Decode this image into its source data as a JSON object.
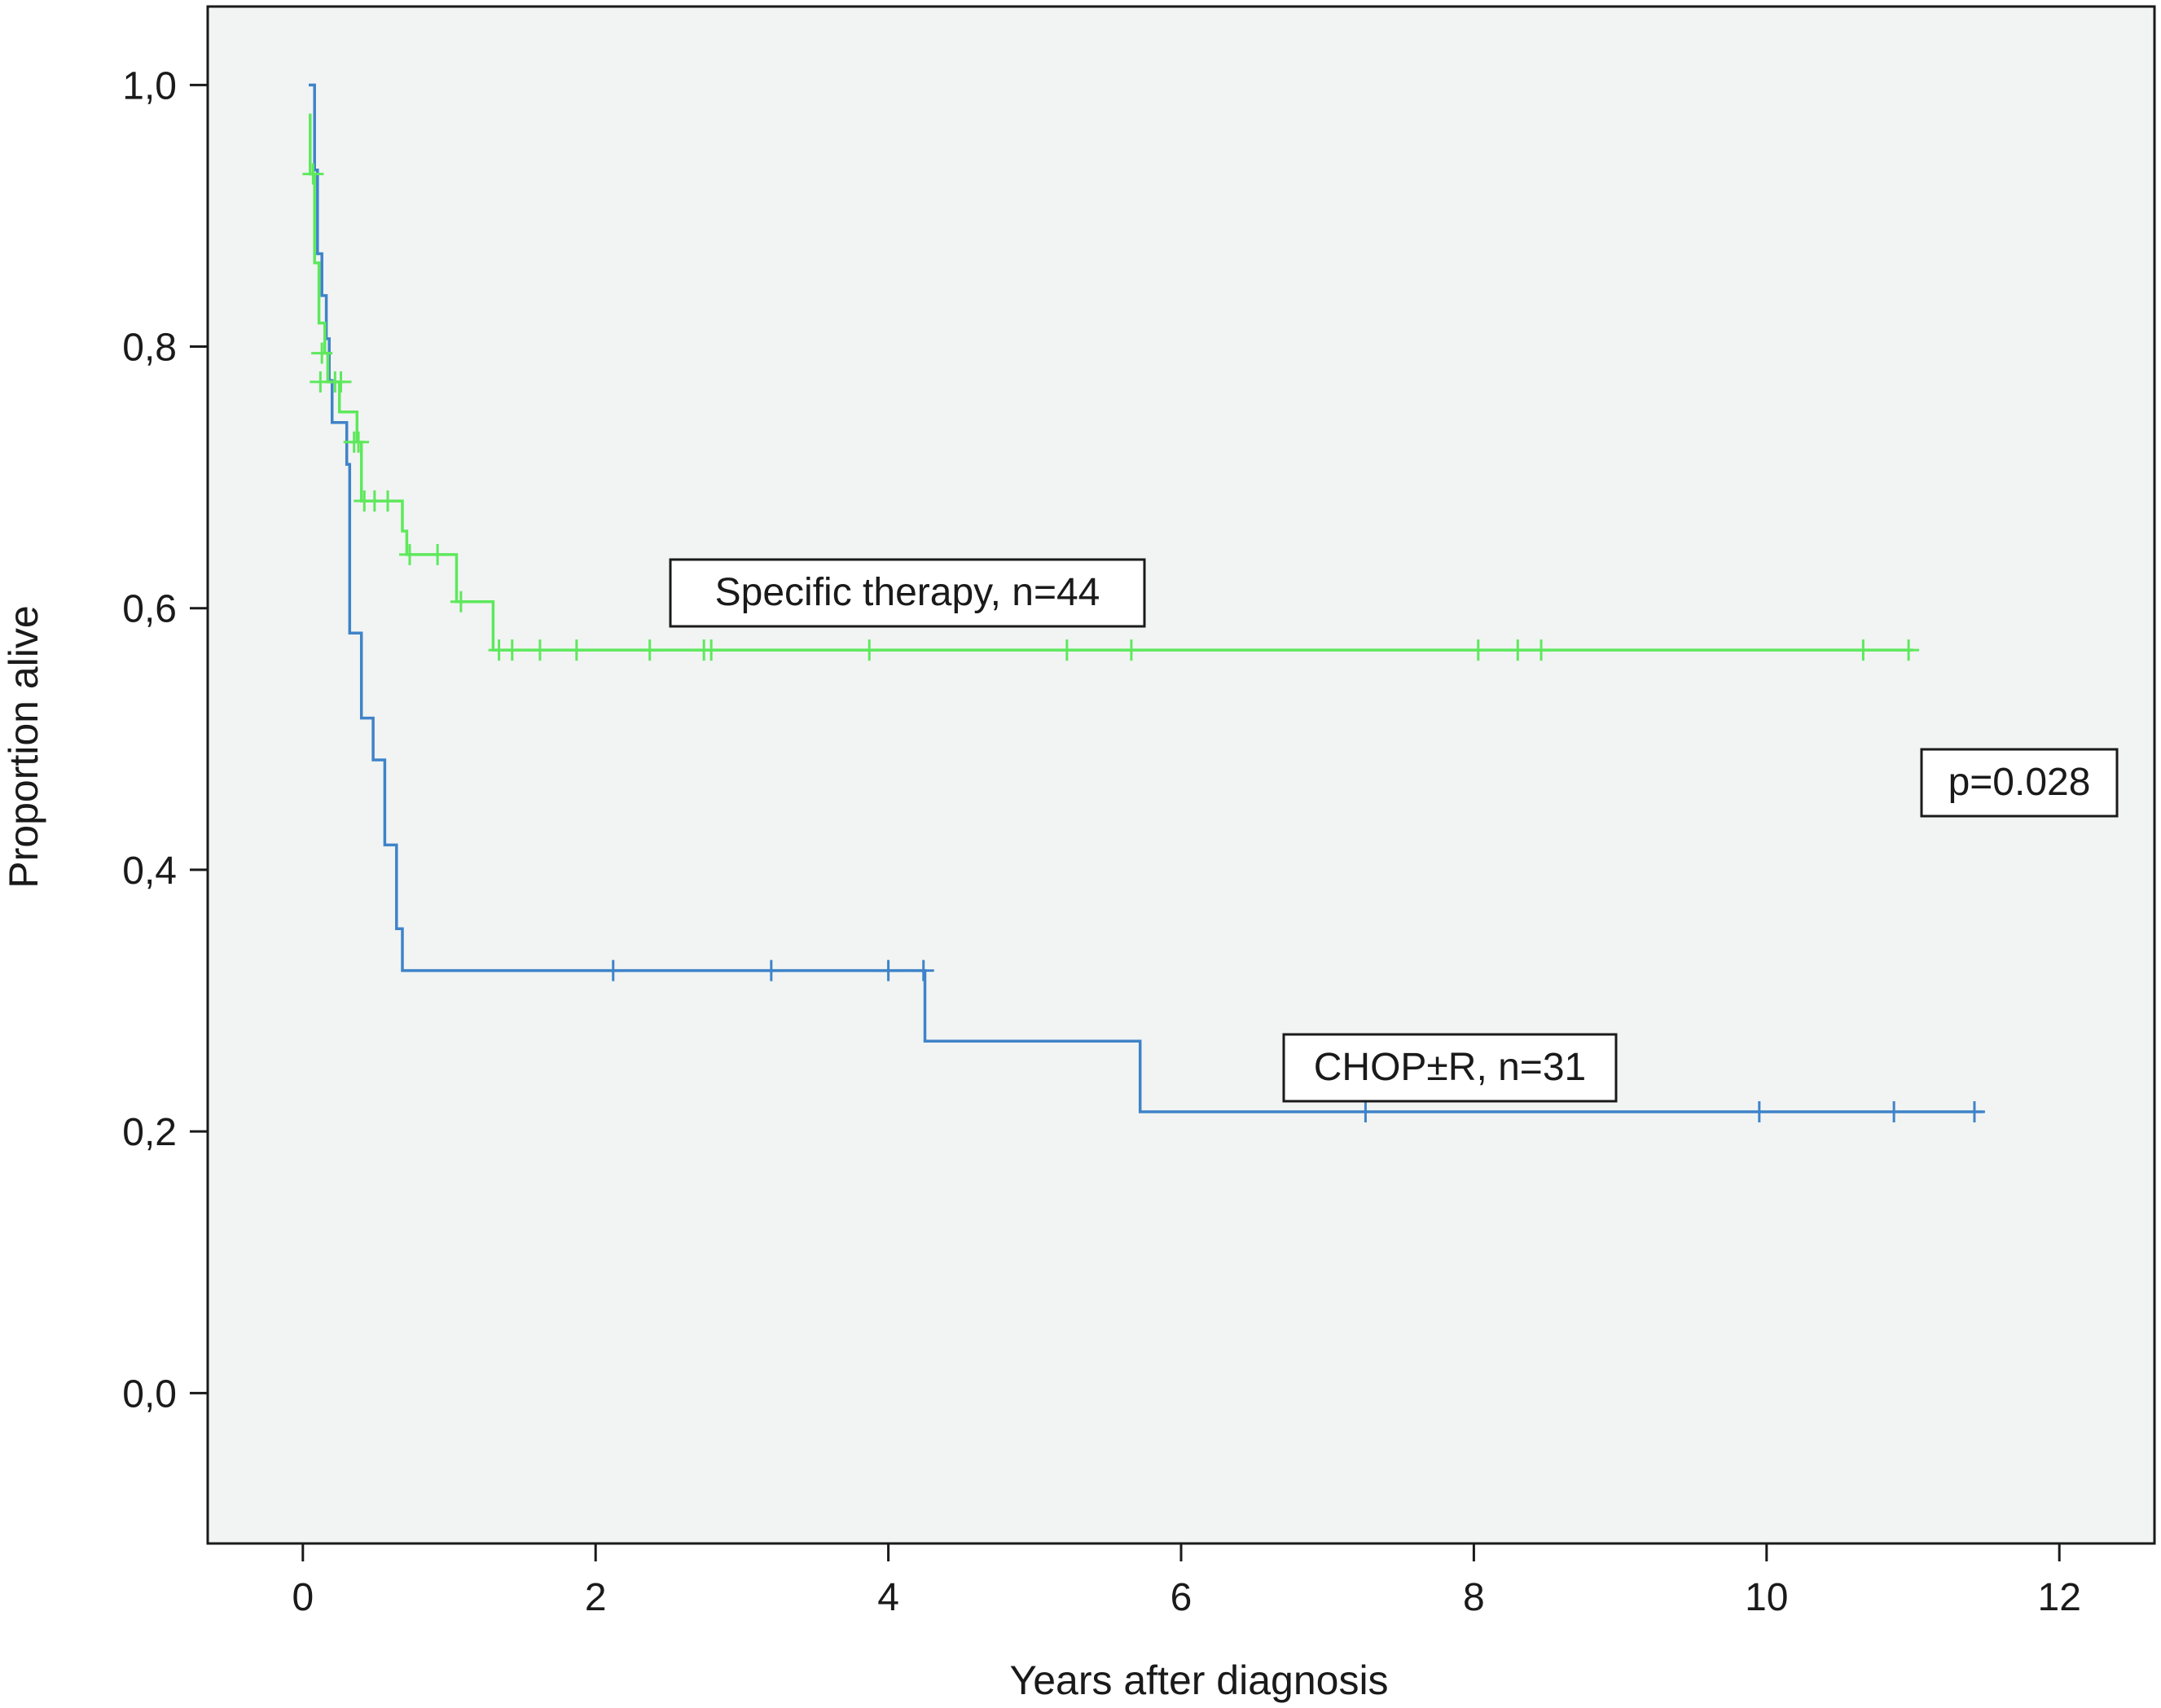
{
  "chart_data": {
    "type": "line",
    "subtype": "kaplan-meier",
    "title": "",
    "xlabel": "Years after diagnosis",
    "ylabel": "Proportion alive",
    "xlim": [
      -0.65,
      12.65
    ],
    "ylim": [
      -0.115,
      1.06
    ],
    "x_ticks": [
      0,
      2,
      4,
      6,
      8,
      10,
      12
    ],
    "x_tick_labels": [
      "0",
      "2",
      "4",
      "6",
      "8",
      "10",
      "12"
    ],
    "y_ticks": [
      0.0,
      0.2,
      0.4,
      0.6,
      0.8,
      1.0
    ],
    "y_tick_labels": [
      "0,0",
      "0,2",
      "0,4",
      "0,6",
      "0,8",
      "1,0"
    ],
    "grid": false,
    "background": "#f1f4f3",
    "series": [
      {
        "color": "#3f83c9",
        "steps": [
          [
            0.04,
            1.0
          ],
          [
            0.08,
            0.935
          ],
          [
            0.1,
            0.871
          ],
          [
            0.13,
            0.839
          ],
          [
            0.16,
            0.806
          ],
          [
            0.18,
            0.774
          ],
          [
            0.2,
            0.742
          ],
          [
            0.3,
            0.71
          ],
          [
            0.32,
            0.581
          ],
          [
            0.4,
            0.516
          ],
          [
            0.48,
            0.484
          ],
          [
            0.56,
            0.419
          ],
          [
            0.64,
            0.355
          ],
          [
            0.68,
            0.323
          ],
          [
            4.25,
            0.323
          ],
          [
            4.25,
            0.269
          ],
          [
            5.72,
            0.269
          ],
          [
            5.72,
            0.215
          ],
          [
            11.48,
            0.215
          ]
        ],
        "censored": [
          [
            2.12,
            0.323
          ],
          [
            3.2,
            0.323
          ],
          [
            4.0,
            0.323
          ],
          [
            4.24,
            0.323
          ],
          [
            7.26,
            0.215
          ],
          [
            9.95,
            0.215
          ],
          [
            10.87,
            0.215
          ],
          [
            11.42,
            0.215
          ]
        ]
      },
      {
        "color": "#5ee85c",
        "steps": [
          [
            0.04,
            0.977
          ],
          [
            0.05,
            0.932
          ],
          [
            0.08,
            0.864
          ],
          [
            0.11,
            0.818
          ],
          [
            0.15,
            0.795
          ],
          [
            0.17,
            0.773
          ],
          [
            0.21,
            0.773
          ],
          [
            0.25,
            0.75
          ],
          [
            0.37,
            0.727
          ],
          [
            0.4,
            0.682
          ],
          [
            0.65,
            0.682
          ],
          [
            0.68,
            0.659
          ],
          [
            0.71,
            0.641
          ],
          [
            1.03,
            0.641
          ],
          [
            1.05,
            0.605
          ],
          [
            1.3,
            0.605
          ],
          [
            1.3,
            0.568
          ],
          [
            11.0,
            0.568
          ]
        ],
        "censored": [
          [
            0.07,
            0.932
          ],
          [
            0.13,
            0.795
          ],
          [
            0.12,
            0.773
          ],
          [
            0.22,
            0.773
          ],
          [
            0.26,
            0.773
          ],
          [
            0.35,
            0.727
          ],
          [
            0.38,
            0.727
          ],
          [
            0.42,
            0.682
          ],
          [
            0.49,
            0.682
          ],
          [
            0.58,
            0.682
          ],
          [
            0.73,
            0.641
          ],
          [
            0.92,
            0.641
          ],
          [
            1.08,
            0.605
          ],
          [
            1.34,
            0.568
          ],
          [
            1.43,
            0.568
          ],
          [
            1.62,
            0.568
          ],
          [
            1.87,
            0.568
          ],
          [
            2.37,
            0.568
          ],
          [
            2.74,
            0.568
          ],
          [
            2.79,
            0.568
          ],
          [
            3.87,
            0.568
          ],
          [
            5.22,
            0.568
          ],
          [
            5.66,
            0.568
          ],
          [
            8.03,
            0.568
          ],
          [
            8.3,
            0.568
          ],
          [
            8.46,
            0.568
          ],
          [
            10.66,
            0.568
          ],
          [
            10.97,
            0.568
          ]
        ]
      }
    ],
    "annotations": [
      {
        "text": "Specific therapy, n=44"
      },
      {
        "text": "CHOP±R, n=31"
      },
      {
        "text": "p=0.028"
      }
    ]
  }
}
